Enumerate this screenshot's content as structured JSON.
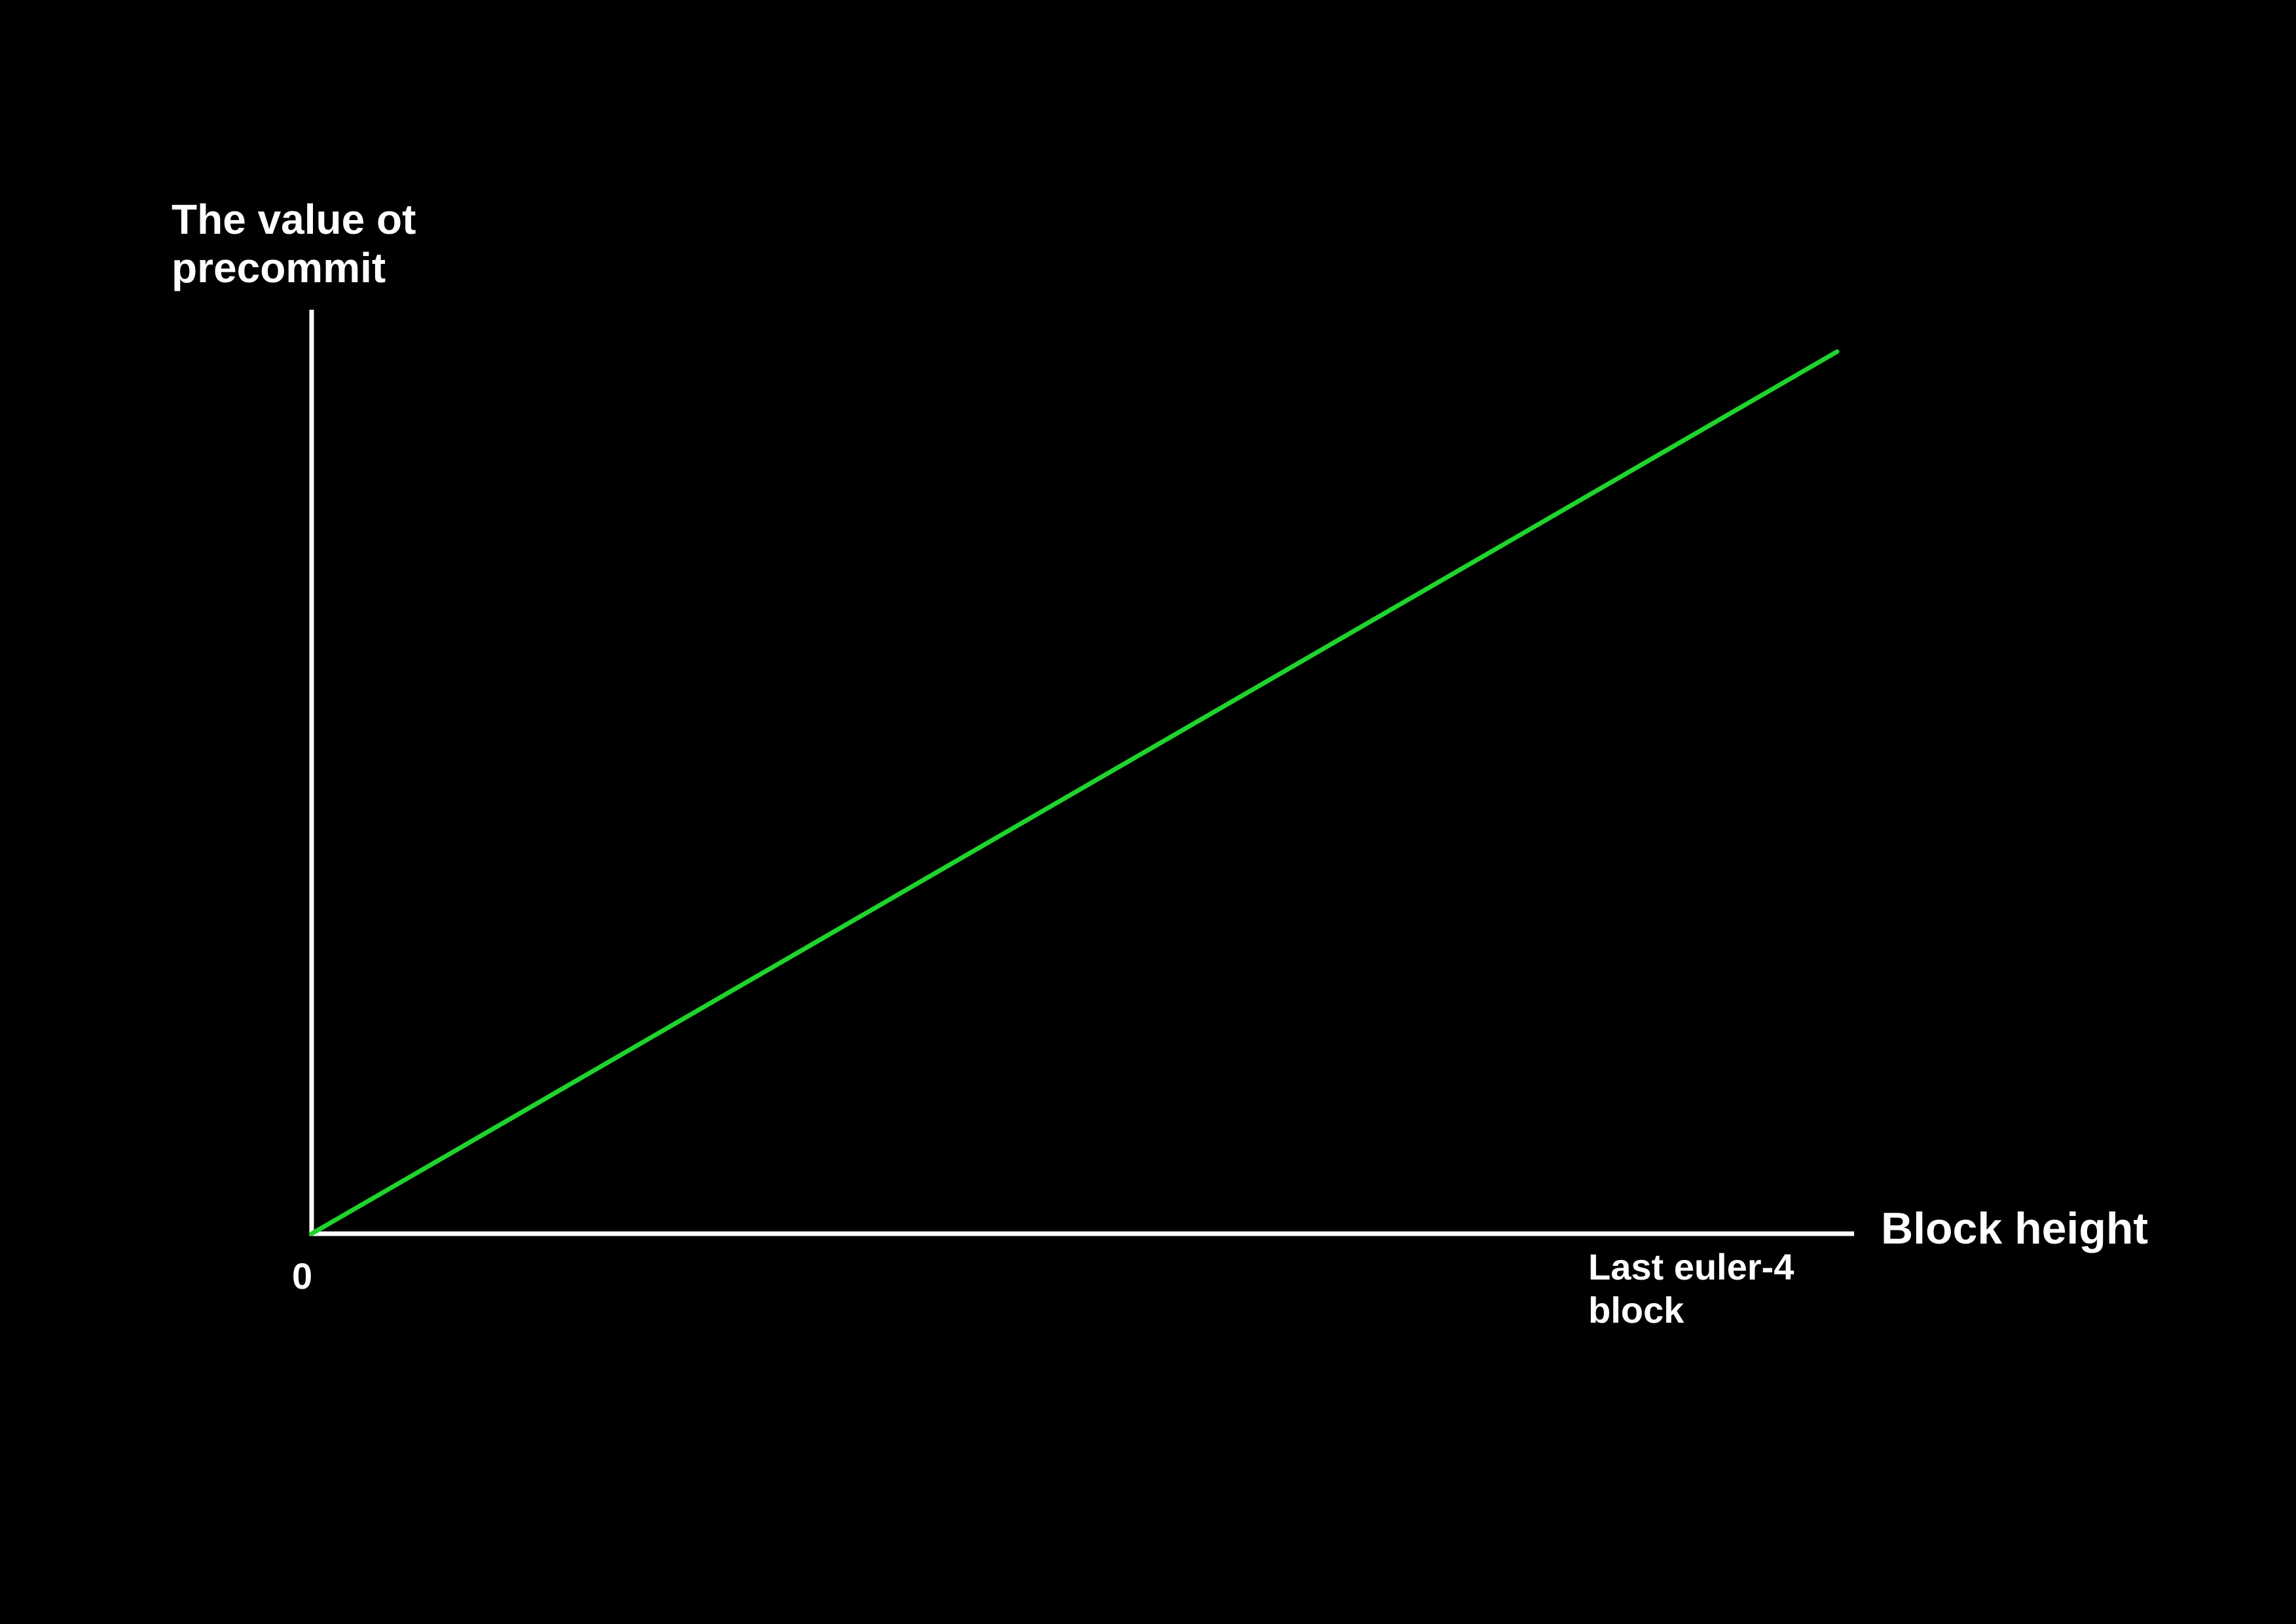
{
  "chart_data": {
    "type": "line",
    "title": "",
    "ylabel": [
      "The value ot",
      "precommit"
    ],
    "xlabel": "Block height",
    "x_ticks": [
      {
        "lines": [
          "0"
        ],
        "value": 0
      },
      {
        "lines": [
          "Last euler-4",
          "block"
        ],
        "value": 1
      }
    ],
    "xlim": [
      0,
      1
    ],
    "ylim": [
      0,
      1
    ],
    "grid": false,
    "series": [
      {
        "x": [
          0,
          1
        ],
        "y": [
          0,
          1
        ]
      }
    ],
    "colors": {
      "background": "#000000",
      "axis": "#ffffff",
      "text": "#ffffff",
      "line": "#1fd42c"
    }
  }
}
